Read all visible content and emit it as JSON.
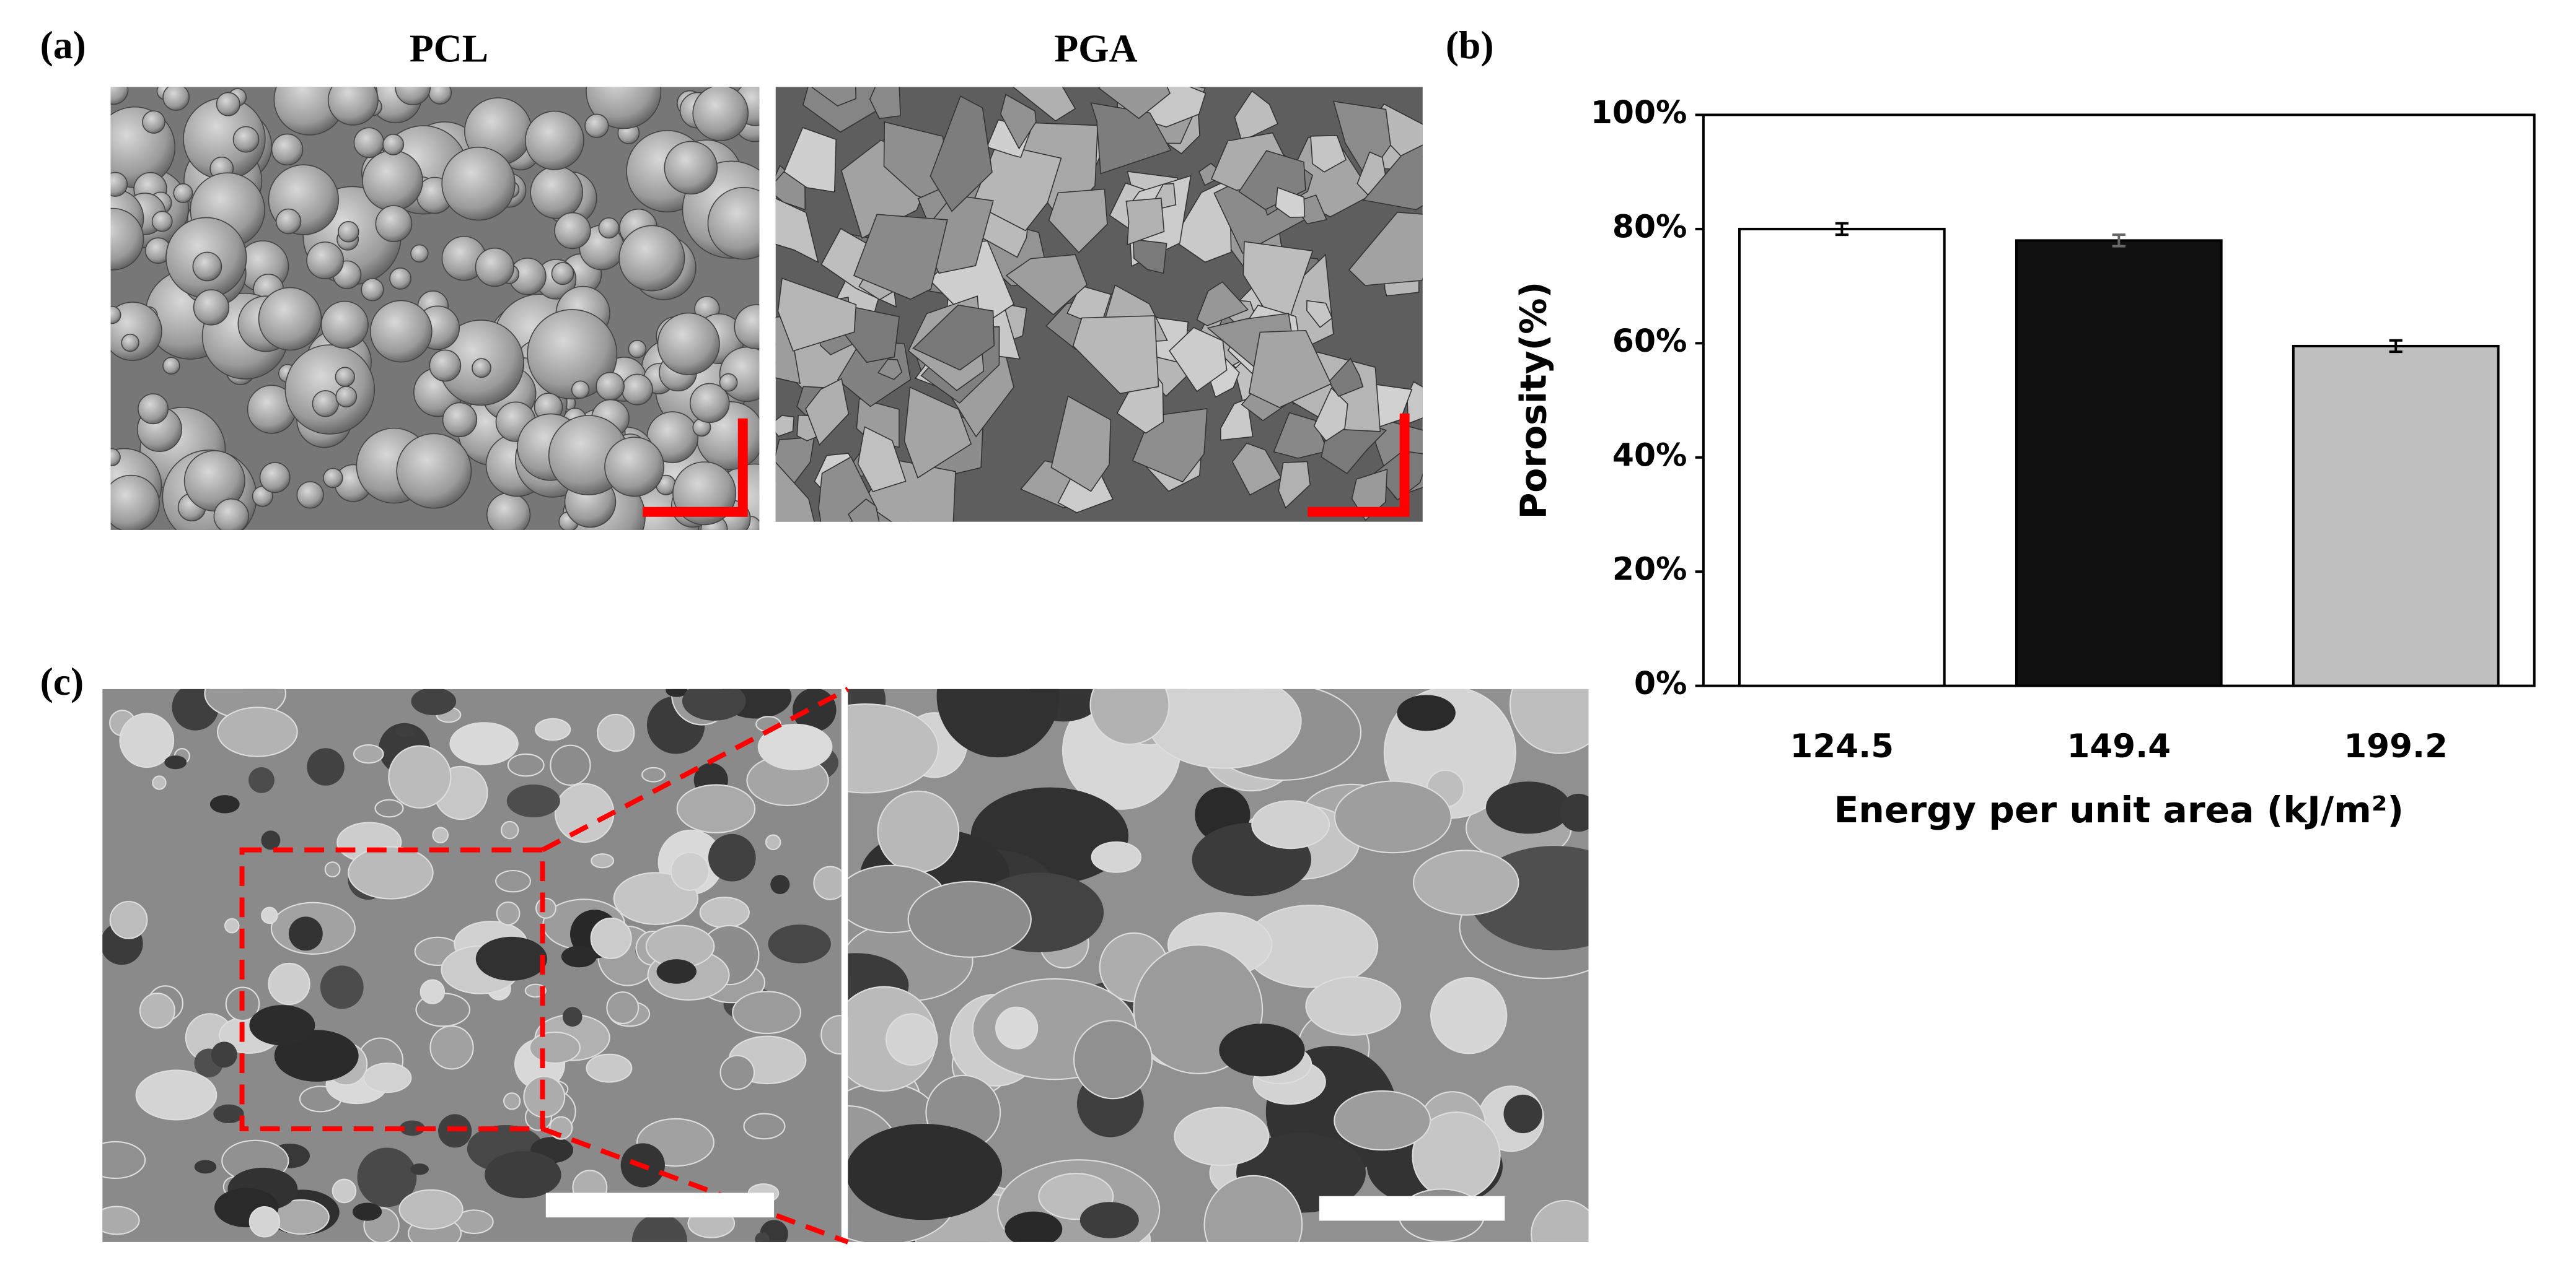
{
  "figure": {
    "panel_labels": [
      "(a)",
      "(b)",
      "(c)"
    ],
    "image_titles": [
      "PCL",
      "PGA"
    ]
  },
  "chart_data": {
    "type": "bar",
    "x_label": "Energy per unit area (kJ/m²)",
    "y_label": "Porosity(%)",
    "categories": [
      "124.5",
      "149.4",
      "199.2"
    ],
    "values": [
      80,
      78,
      59.5
    ],
    "errors": [
      1,
      1,
      1
    ],
    "colors": [
      "#ffffff",
      "#111111",
      "#bfbfbf"
    ],
    "ylim": [
      0,
      100
    ],
    "yticks": [
      {
        "value": 0,
        "label": "0%"
      },
      {
        "value": 20,
        "label": "20%"
      },
      {
        "value": 40,
        "label": "40%"
      },
      {
        "value": 60,
        "label": "60%"
      },
      {
        "value": 80,
        "label": "80%"
      },
      {
        "value": 100,
        "label": "100%"
      }
    ]
  }
}
